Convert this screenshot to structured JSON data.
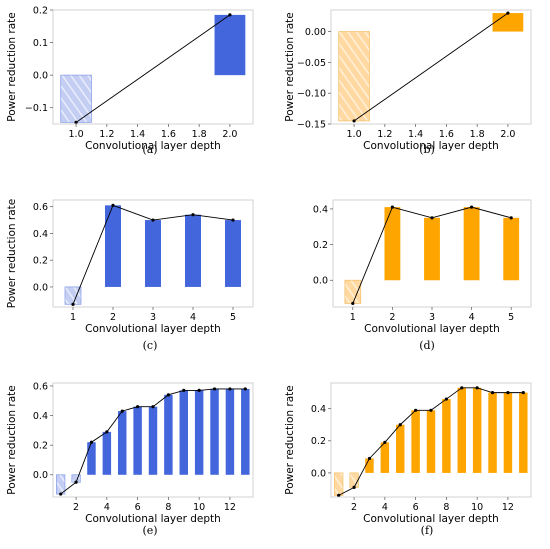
{
  "chart_data": [
    {
      "type": "bar",
      "panel": "(a)",
      "x": [
        1,
        2
      ],
      "values": [
        -0.145,
        0.185
      ],
      "xlabel": "Convolutional layer depth",
      "ylabel": "Power reduction rate",
      "xticks": [
        "1.0",
        "1.2",
        "1.4",
        "1.6",
        "1.8",
        "2.0"
      ],
      "yticks": [
        "0.2",
        "0.1",
        "0.0",
        "−0.1"
      ],
      "xlim": [
        0.85,
        2.15
      ],
      "ylim": [
        -0.15,
        0.2
      ],
      "bar_width": 0.2,
      "color": "#4466dd",
      "negative_style": "hatched-light",
      "line_overlay": true,
      "grid": false
    },
    {
      "type": "bar",
      "panel": "(b)",
      "x": [
        1,
        2
      ],
      "values": [
        -0.145,
        0.03
      ],
      "xlabel": "Convolutional layer depth",
      "ylabel": "Power reduction rate",
      "xticks": [
        "1.0",
        "1.2",
        "1.4",
        "1.6",
        "1.8",
        "2.0"
      ],
      "yticks": [
        "0.00",
        "−0.05",
        "−0.10",
        "−0.15"
      ],
      "xlim": [
        0.85,
        2.15
      ],
      "ylim": [
        -0.15,
        0.035
      ],
      "bar_width": 0.2,
      "color": "#ffa500",
      "negative_style": "hatched-light",
      "line_overlay": true,
      "grid": false
    },
    {
      "type": "bar",
      "panel": "(c)",
      "x": [
        1,
        2,
        3,
        4,
        5
      ],
      "values": [
        -0.13,
        0.61,
        0.5,
        0.54,
        0.5
      ],
      "xlabel": "Convolutional layer depth",
      "ylabel": "Power reduction rate",
      "xticks": [
        "1",
        "2",
        "3",
        "4",
        "5"
      ],
      "yticks": [
        "0.6",
        "0.4",
        "0.2",
        "0.0"
      ],
      "xlim": [
        0.5,
        5.5
      ],
      "ylim": [
        -0.15,
        0.65
      ],
      "bar_width": 0.4,
      "color": "#4466dd",
      "negative_style": "hatched-light",
      "line_overlay": true,
      "grid": false
    },
    {
      "type": "bar",
      "panel": "(d)",
      "x": [
        1,
        2,
        3,
        4,
        5
      ],
      "values": [
        -0.13,
        0.41,
        0.35,
        0.41,
        0.35
      ],
      "xlabel": "Convolutional layer depth",
      "ylabel": "",
      "xticks": [
        "1",
        "2",
        "3",
        "4",
        "5"
      ],
      "yticks": [
        "0.4",
        "0.2",
        "0.0"
      ],
      "xlim": [
        0.5,
        5.5
      ],
      "ylim": [
        -0.15,
        0.45
      ],
      "bar_width": 0.4,
      "color": "#ffa500",
      "negative_style": "hatched-light",
      "line_overlay": true,
      "grid": false
    },
    {
      "type": "bar",
      "panel": "(e)",
      "x": [
        1,
        2,
        3,
        4,
        5,
        6,
        7,
        8,
        9,
        10,
        11,
        12,
        13
      ],
      "values": [
        -0.13,
        -0.05,
        0.22,
        0.29,
        0.43,
        0.46,
        0.46,
        0.54,
        0.57,
        0.57,
        0.58,
        0.58,
        0.58
      ],
      "xlabel": "Convolutional layer depth",
      "ylabel": "Power reduction rate",
      "xticks": [
        "2",
        "4",
        "6",
        "8",
        "10",
        "12"
      ],
      "yticks": [
        "0.6",
        "0.4",
        "0.2",
        "0.0"
      ],
      "xlim": [
        0.5,
        13.5
      ],
      "ylim": [
        -0.15,
        0.62
      ],
      "bar_width": 0.55,
      "color": "#4466dd",
      "negative_style": "hatched-light",
      "line_overlay": true,
      "grid": false
    },
    {
      "type": "bar",
      "panel": "(f)",
      "x": [
        1,
        2,
        3,
        4,
        5,
        6,
        7,
        8,
        9,
        10,
        11,
        12,
        13
      ],
      "values": [
        -0.14,
        -0.09,
        0.09,
        0.19,
        0.3,
        0.39,
        0.39,
        0.46,
        0.53,
        0.53,
        0.5,
        0.5,
        0.5
      ],
      "xlabel": "Convolutional layer depth",
      "ylabel": "Power reduction rate",
      "xticks": [
        "2",
        "4",
        "6",
        "8",
        "10",
        "12"
      ],
      "yticks": [
        "0.4",
        "0.2",
        "0.0"
      ],
      "xlim": [
        0.5,
        13.5
      ],
      "ylim": [
        -0.15,
        0.56
      ],
      "bar_width": 0.55,
      "color": "#ffa500",
      "negative_style": "hatched-light",
      "line_overlay": true,
      "grid": false
    }
  ]
}
